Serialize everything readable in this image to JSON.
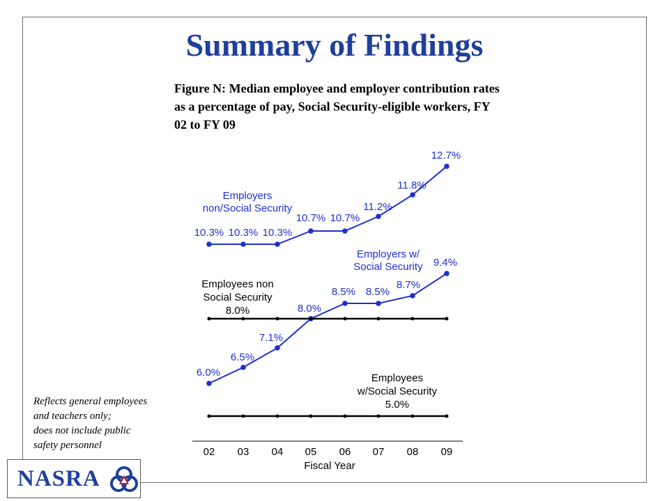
{
  "slide": {
    "title": "Summary of Findings",
    "caption": "Figure N: Median employee and employer contribution rates as a percentage of pay, Social Security-eligible workers, FY 02 to FY 09",
    "footnote": [
      "Reflects general employees",
      "and teachers only;",
      "does not include public",
      "safety personnel"
    ],
    "logo_text": "NASRA",
    "logo_icon": "nasra-emblem-icon"
  },
  "chart_data": {
    "type": "line",
    "categories": [
      "02",
      "03",
      "04",
      "05",
      "06",
      "07",
      "08",
      "09"
    ],
    "xlabel": "Fiscal Year",
    "ylabel": "",
    "ylim": [
      4,
      13
    ],
    "grid": false,
    "legend": "inline labels",
    "series": [
      {
        "name": "Employers non/Social Security",
        "label_lines": [
          "Employers",
          "non/Social Security"
        ],
        "values": [
          10.3,
          10.3,
          10.3,
          10.7,
          10.7,
          11.2,
          11.8,
          12.7
        ],
        "data_labels": [
          "10.3%",
          "10.3%",
          "10.3%",
          "10.7%",
          "10.7%",
          "11.2%",
          "11.8%",
          "12.7%"
        ],
        "color": "#1f2fd0"
      },
      {
        "name": "Employers w/ Social Security",
        "label_lines": [
          "Employers w/",
          "Social Security"
        ],
        "values": [
          6.0,
          6.5,
          7.1,
          8.0,
          8.5,
          8.5,
          8.7,
          9.4
        ],
        "data_labels": [
          "6.0%",
          "6.5%",
          "7.1%",
          "8.0%",
          "8.5%",
          "8.5%",
          "8.7%",
          "9.4%"
        ],
        "color": "#1f2fd0"
      },
      {
        "name": "Employees non Social Security",
        "label_lines": [
          "Employees non",
          "Social Security",
          "8.0%"
        ],
        "values": [
          8.0,
          8.0,
          8.0,
          8.0,
          8.0,
          8.0,
          8.0,
          8.0
        ],
        "color": "#000000"
      },
      {
        "name": "Employees w/Social Security",
        "label_lines": [
          "Employees",
          "w/Social Security",
          "5.0%"
        ],
        "values": [
          5.0,
          5.0,
          5.0,
          5.0,
          5.0,
          5.0,
          5.0,
          5.0
        ],
        "color": "#000000"
      }
    ]
  }
}
